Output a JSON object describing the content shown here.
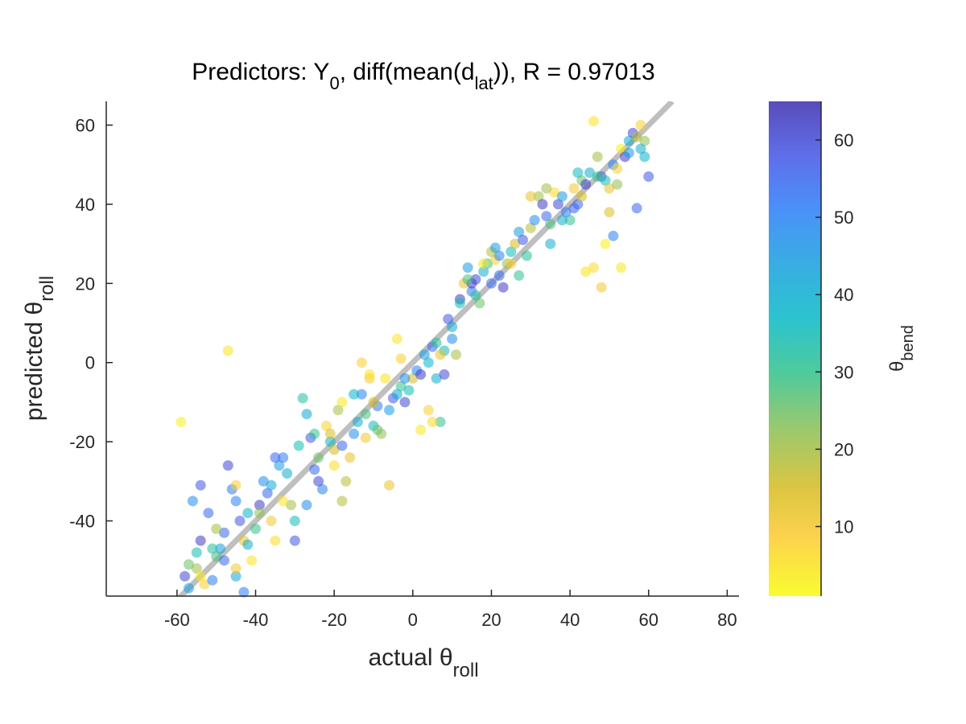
{
  "chart_data": {
    "type": "scatter",
    "title": {
      "prefix": "Predictors: Y",
      "sub1": "0",
      "middle": ", diff(mean(d",
      "sub2": "lat",
      "suffix": ")), R = 0.97013"
    },
    "xlabel": {
      "main": "actual θ",
      "sub": "roll"
    },
    "ylabel": {
      "main": "predicted θ",
      "sub": "roll"
    },
    "colorbar_label": {
      "main": "θ",
      "sub": "bend"
    },
    "xlim": [
      -78,
      83
    ],
    "ylim": [
      -59,
      66
    ],
    "xticks": [
      -60,
      -40,
      -20,
      0,
      20,
      40,
      60,
      80
    ],
    "yticks": [
      -40,
      -20,
      0,
      20,
      40,
      60
    ],
    "clim": [
      1,
      65
    ],
    "cticks": [
      10,
      20,
      30,
      40,
      50,
      60
    ],
    "grid": false,
    "reference_line": {
      "x": [
        -60,
        66
      ],
      "y": [
        -60,
        66
      ],
      "color": "#bfbfbf"
    },
    "colormap": "parula",
    "points": [
      [
        -59,
        -15,
        3
      ],
      [
        -47,
        3,
        5
      ],
      [
        -58,
        -54,
        60
      ],
      [
        -57,
        -57,
        45
      ],
      [
        -55,
        -48,
        35
      ],
      [
        -54,
        -45,
        62
      ],
      [
        -56,
        -35,
        48
      ],
      [
        -54,
        -31,
        58
      ],
      [
        -52,
        -38,
        55
      ],
      [
        -55,
        -52,
        20
      ],
      [
        -53,
        -56,
        8
      ],
      [
        -51,
        -55,
        50
      ],
      [
        -50,
        -49,
        28
      ],
      [
        -49,
        -47,
        44
      ],
      [
        -48,
        -43,
        55
      ],
      [
        -47,
        -26,
        60
      ],
      [
        -46,
        -32,
        52
      ],
      [
        -45,
        -35,
        50
      ],
      [
        -44,
        -40,
        58
      ],
      [
        -43,
        -45,
        12
      ],
      [
        -42,
        -38,
        38
      ],
      [
        -41,
        -50,
        5
      ],
      [
        -45,
        -54,
        42
      ],
      [
        -43,
        -58,
        52
      ],
      [
        -40,
        -42,
        30
      ],
      [
        -39,
        -36,
        62
      ],
      [
        -38,
        -30,
        48
      ],
      [
        -37,
        -33,
        55
      ],
      [
        -36,
        -40,
        10
      ],
      [
        -35,
        -45,
        6
      ],
      [
        -34,
        -26,
        45
      ],
      [
        -33,
        -24,
        52
      ],
      [
        -32,
        -28,
        40
      ],
      [
        -31,
        -36,
        20
      ],
      [
        -30,
        -40,
        35
      ],
      [
        -29,
        -21,
        35
      ],
      [
        -28,
        -9,
        32
      ],
      [
        -27,
        -13,
        42
      ],
      [
        -26,
        -19,
        58
      ],
      [
        -25,
        -27,
        55
      ],
      [
        -24,
        -24,
        25
      ],
      [
        -23,
        -32,
        50
      ],
      [
        -22,
        -16,
        8
      ],
      [
        -21,
        -20,
        38
      ],
      [
        -20,
        -22,
        15
      ],
      [
        -19,
        -12,
        20
      ],
      [
        -18,
        -10,
        4
      ],
      [
        -17,
        -30,
        18
      ],
      [
        -16,
        -24,
        12
      ],
      [
        -15,
        -18,
        48
      ],
      [
        -14,
        -15,
        40
      ],
      [
        -13,
        -8,
        50
      ],
      [
        -12,
        -13,
        28
      ],
      [
        -11,
        -4,
        10
      ],
      [
        -10,
        -16,
        36
      ],
      [
        -9,
        -11,
        52
      ],
      [
        -8,
        -18,
        22
      ],
      [
        -7,
        -4,
        5
      ],
      [
        -6,
        -31,
        12
      ],
      [
        -5,
        -9,
        58
      ],
      [
        -4,
        -8,
        42
      ],
      [
        -3,
        -6,
        30
      ],
      [
        -2,
        -10,
        60
      ],
      [
        -1,
        -7,
        35
      ],
      [
        0,
        -4,
        15
      ],
      [
        1,
        -2,
        50
      ],
      [
        2,
        -3,
        62
      ],
      [
        3,
        2,
        45
      ],
      [
        4,
        -12,
        8
      ],
      [
        5,
        4,
        55
      ],
      [
        6,
        -4,
        40
      ],
      [
        7,
        -15,
        30
      ],
      [
        8,
        3,
        35
      ],
      [
        9,
        11,
        58
      ],
      [
        10,
        6,
        48
      ],
      [
        11,
        2,
        20
      ],
      [
        12,
        16,
        62
      ],
      [
        13,
        20,
        12
      ],
      [
        14,
        24,
        45
      ],
      [
        15,
        18,
        52
      ],
      [
        16,
        21,
        60
      ],
      [
        17,
        15,
        25
      ],
      [
        18,
        23,
        40
      ],
      [
        19,
        25,
        30
      ],
      [
        20,
        20,
        55
      ],
      [
        21,
        26,
        8
      ],
      [
        22,
        27,
        50
      ],
      [
        23,
        19,
        62
      ],
      [
        24,
        25,
        22
      ],
      [
        25,
        28,
        36
      ],
      [
        26,
        30,
        15
      ],
      [
        27,
        33,
        44
      ],
      [
        28,
        31,
        58
      ],
      [
        29,
        27,
        32
      ],
      [
        30,
        34,
        18
      ],
      [
        31,
        36,
        48
      ],
      [
        32,
        42,
        20
      ],
      [
        33,
        40,
        62
      ],
      [
        34,
        37,
        55
      ],
      [
        35,
        35,
        28
      ],
      [
        36,
        43,
        6
      ],
      [
        37,
        40,
        60
      ],
      [
        38,
        42,
        45
      ],
      [
        39,
        38,
        52
      ],
      [
        40,
        36,
        30
      ],
      [
        41,
        44,
        10
      ],
      [
        42,
        40,
        55
      ],
      [
        43,
        46,
        25
      ],
      [
        44,
        45,
        62
      ],
      [
        45,
        48,
        40
      ],
      [
        46,
        61,
        5
      ],
      [
        47,
        52,
        20
      ],
      [
        48,
        47,
        58
      ],
      [
        49,
        46,
        35
      ],
      [
        50,
        44,
        12
      ],
      [
        51,
        50,
        50
      ],
      [
        52,
        49,
        8
      ],
      [
        53,
        54,
        3
      ],
      [
        54,
        52,
        62
      ],
      [
        55,
        56,
        40
      ],
      [
        56,
        58,
        60
      ],
      [
        57,
        57,
        18
      ],
      [
        58,
        60,
        8
      ],
      [
        59,
        56,
        22
      ],
      [
        60,
        47,
        58
      ],
      [
        57,
        39,
        55
      ],
      [
        59,
        52,
        38
      ],
      [
        53,
        24,
        4
      ],
      [
        48,
        19,
        10
      ],
      [
        46,
        24,
        6
      ],
      [
        44,
        23,
        5
      ],
      [
        51,
        32,
        50
      ],
      [
        49,
        30,
        3
      ],
      [
        22,
        22,
        55
      ],
      [
        18,
        25,
        5
      ],
      [
        15,
        20,
        62
      ],
      [
        12,
        15,
        35
      ],
      [
        10,
        9,
        42
      ],
      [
        8,
        -3,
        60
      ],
      [
        7,
        2,
        12
      ],
      [
        6,
        5,
        32
      ],
      [
        -3,
        1,
        8
      ],
      [
        -6,
        -12,
        45
      ],
      [
        -9,
        -17,
        25
      ],
      [
        -12,
        -19,
        10
      ],
      [
        -15,
        -8,
        38
      ],
      [
        -18,
        -21,
        55
      ],
      [
        -21,
        -18,
        15
      ],
      [
        -24,
        -30,
        60
      ],
      [
        -27,
        -36,
        48
      ],
      [
        -30,
        -45,
        58
      ],
      [
        -33,
        -35,
        5
      ],
      [
        -36,
        -31,
        42
      ],
      [
        -39,
        -38,
        22
      ],
      [
        -42,
        -46,
        40
      ],
      [
        -45,
        -52,
        10
      ],
      [
        -48,
        -50,
        55
      ],
      [
        -51,
        -47,
        32
      ],
      [
        -54,
        -54,
        4
      ],
      [
        -57,
        -51,
        25
      ],
      [
        -11,
        -3,
        5
      ],
      [
        -13,
        0,
        8
      ],
      [
        2,
        -17,
        4
      ],
      [
        5,
        -15,
        6
      ],
      [
        -4,
        6,
        5
      ],
      [
        25,
        25,
        8
      ],
      [
        30,
        42,
        12
      ],
      [
        34,
        44,
        20
      ],
      [
        38,
        36,
        40
      ],
      [
        42,
        48,
        36
      ],
      [
        55,
        53,
        46
      ],
      [
        43,
        42,
        15
      ],
      [
        27,
        22,
        30
      ],
      [
        20,
        28,
        18
      ],
      [
        21,
        29,
        45
      ],
      [
        14,
        21,
        28
      ],
      [
        -25,
        -18,
        30
      ],
      [
        -35,
        -24,
        55
      ],
      [
        -20,
        -26,
        6
      ],
      [
        -18,
        -35,
        18
      ],
      [
        -45,
        -31,
        8
      ],
      [
        -50,
        -42,
        20
      ],
      [
        -10,
        -10,
        15
      ],
      [
        -2,
        -4,
        48
      ],
      [
        4,
        0,
        38
      ],
      [
        16,
        17,
        32
      ],
      [
        35,
        30,
        40
      ],
      [
        41,
        39,
        56
      ],
      [
        47,
        47,
        30
      ],
      [
        52,
        45,
        22
      ],
      [
        58,
        54,
        40
      ],
      [
        50,
        38,
        14
      ]
    ]
  }
}
